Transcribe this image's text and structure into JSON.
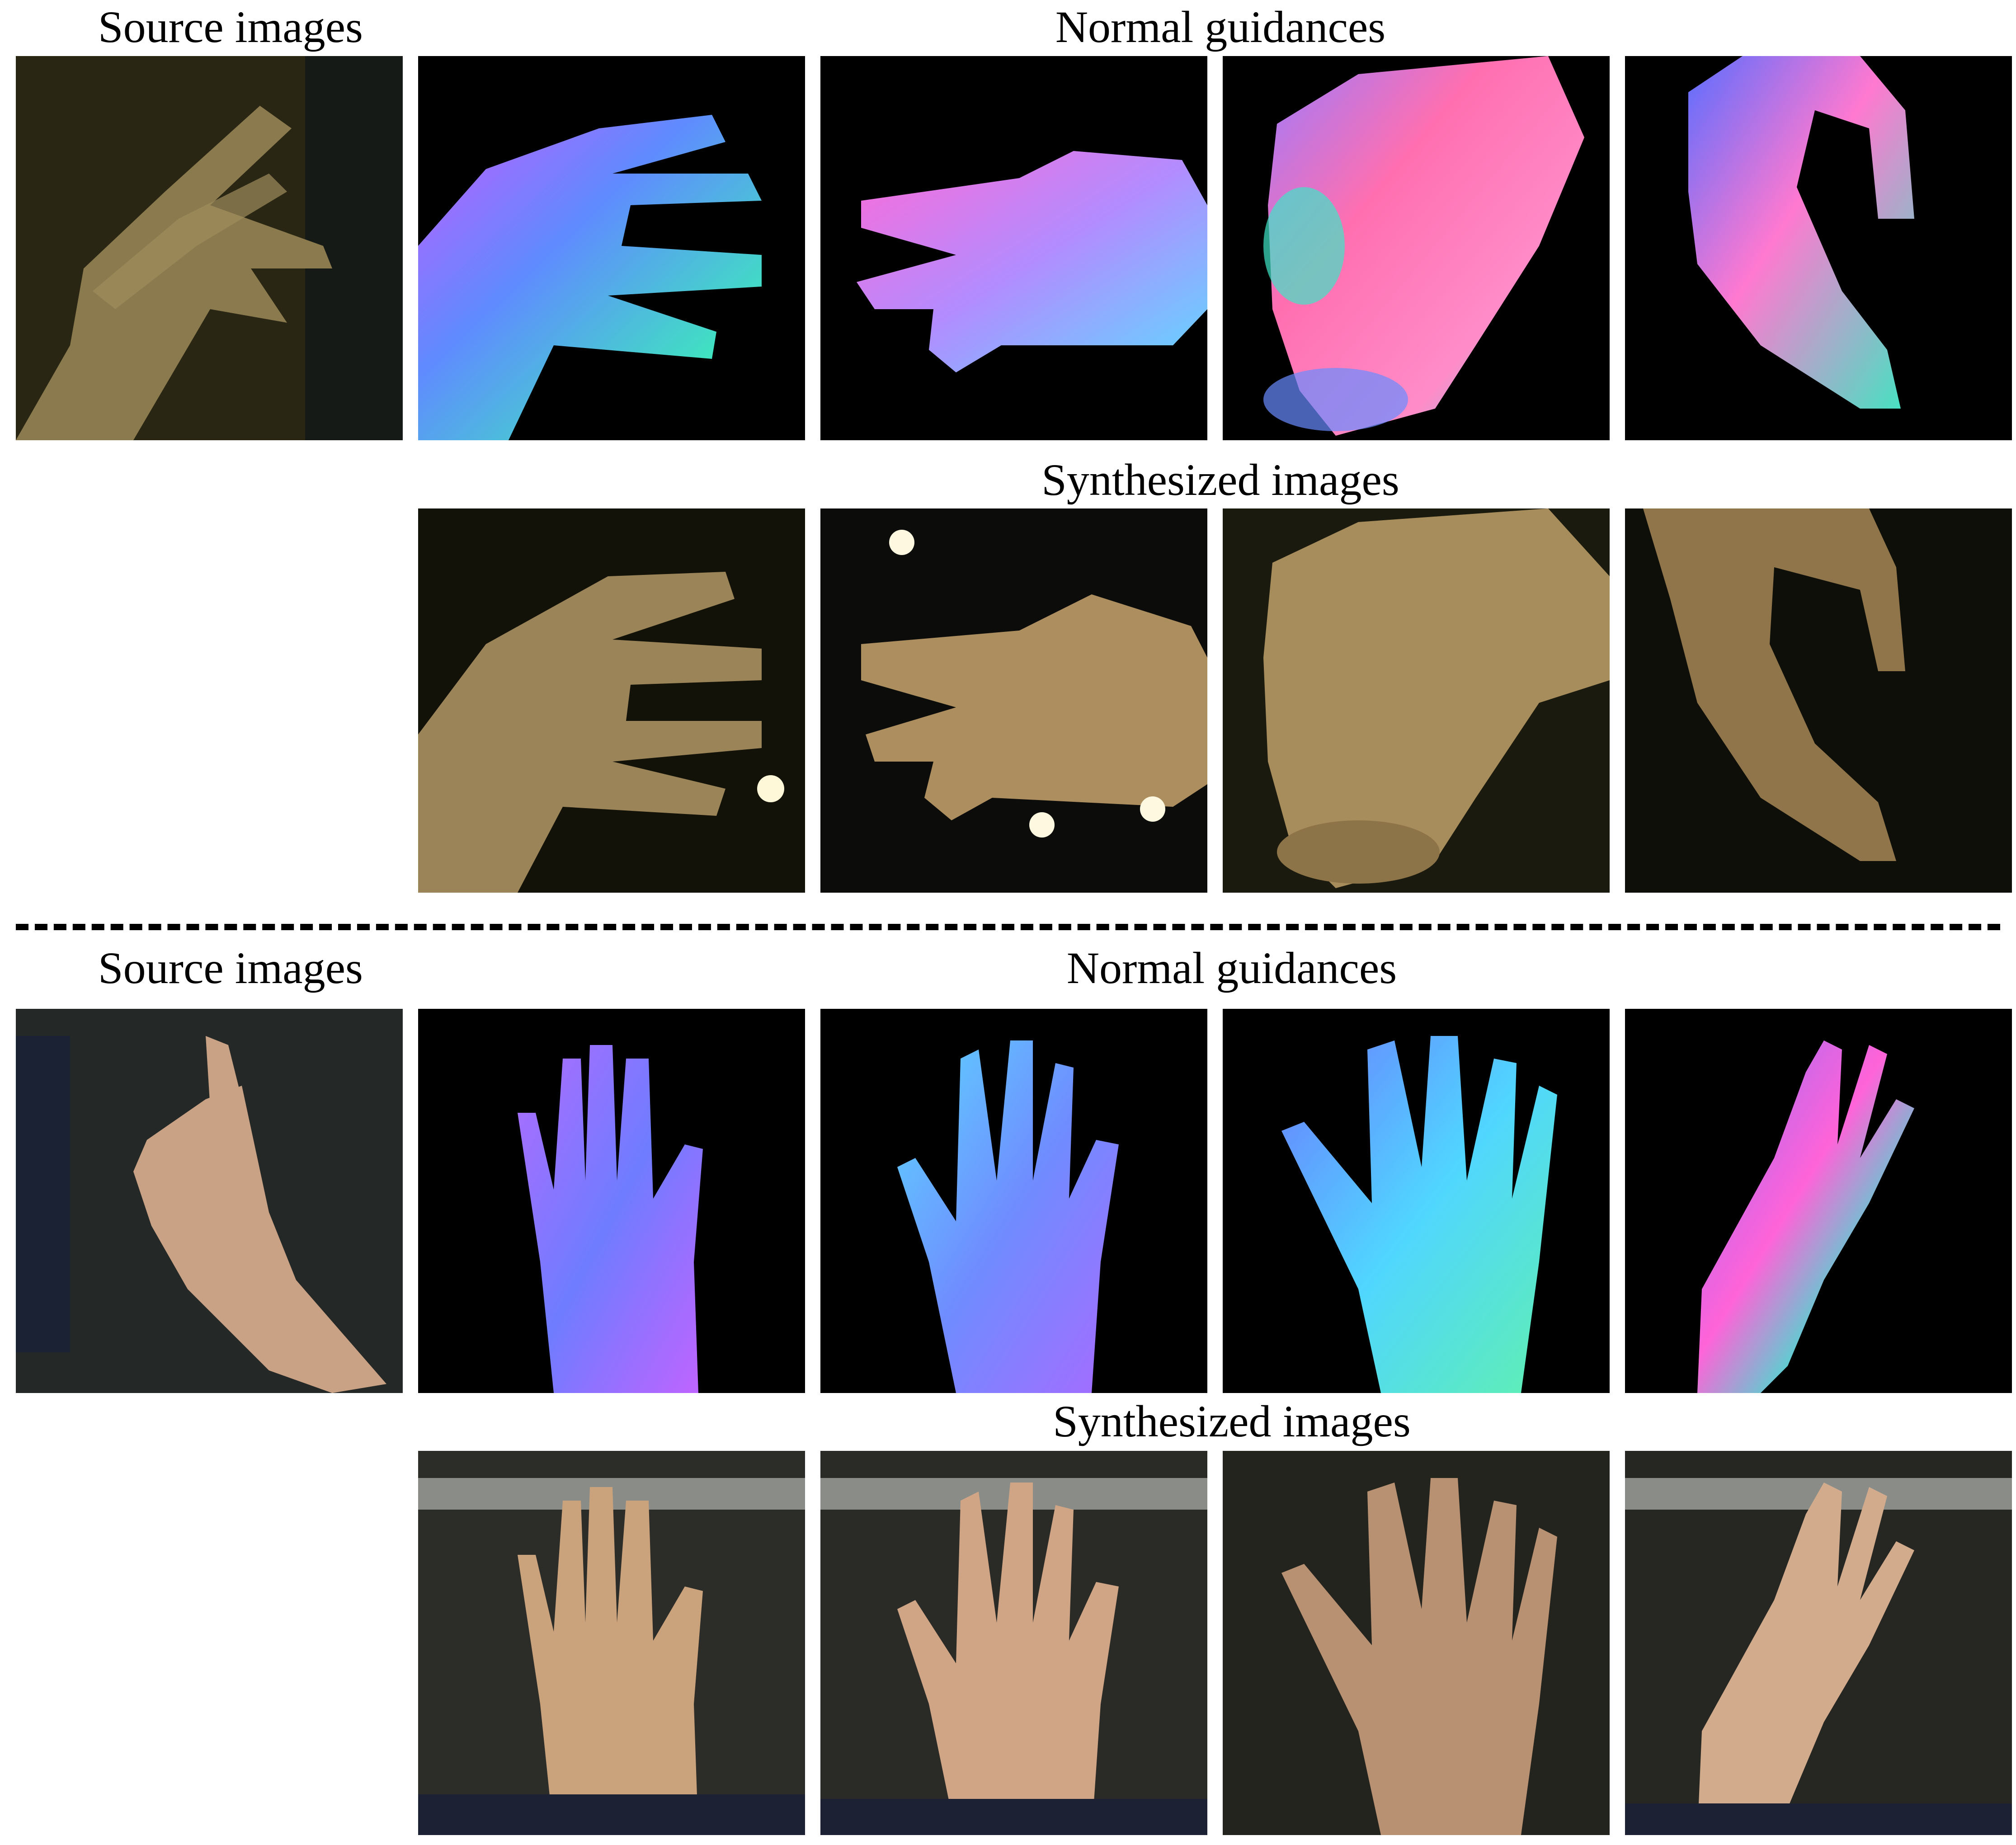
{
  "sections": [
    {
      "source_label": "Source images",
      "normal_label": "Normal guidances",
      "synth_label": "Synthesized images"
    },
    {
      "source_label": "Source images",
      "normal_label": "Normal guidances",
      "synth_label": "Synthesized images"
    }
  ]
}
